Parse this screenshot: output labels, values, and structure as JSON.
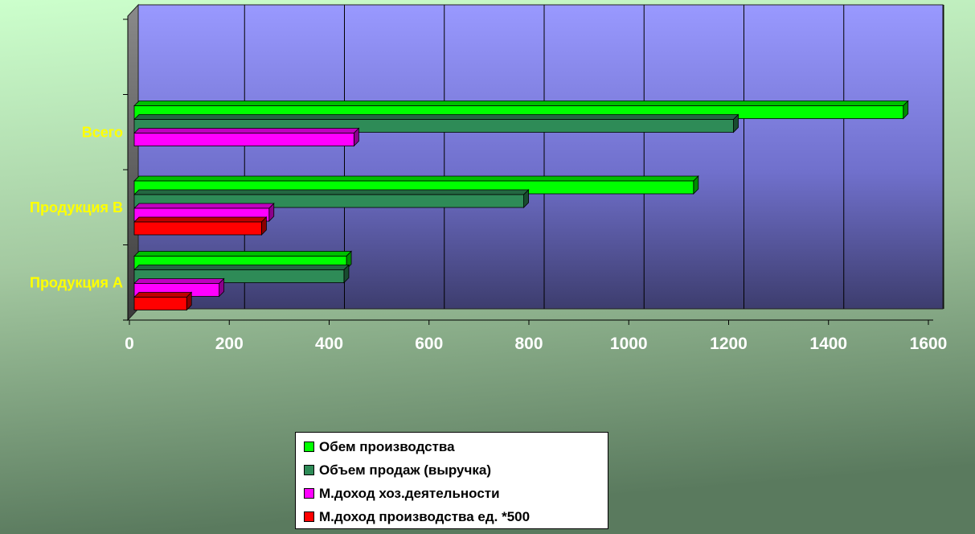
{
  "chart_data": {
    "type": "bar",
    "orientation": "horizontal",
    "categories": [
      "Продукция А",
      "Продукция В",
      "Всего"
    ],
    "series": [
      {
        "name": "Обем производства",
        "color": "#00ff00",
        "values": [
          425,
          1120,
          1540
        ]
      },
      {
        "name": "Объем продаж (выручка)",
        "color": "#2e8b57",
        "values": [
          420,
          780,
          1200
        ]
      },
      {
        "name": "М.доход хоз.деятельности",
        "color": "#ff00ff",
        "values": [
          170,
          270,
          440
        ]
      },
      {
        "name": "М.доход производства ед. *500",
        "color": "#ff0000",
        "values": [
          105,
          255,
          null
        ]
      }
    ],
    "x_ticks": [
      "0",
      "200",
      "400",
      "600",
      "800",
      "1000",
      "1200",
      "1400",
      "1600"
    ],
    "xlim": [
      0,
      1600
    ],
    "grid": true,
    "legend_position": "bottom",
    "title": "",
    "xlabel": "",
    "ylabel": ""
  }
}
